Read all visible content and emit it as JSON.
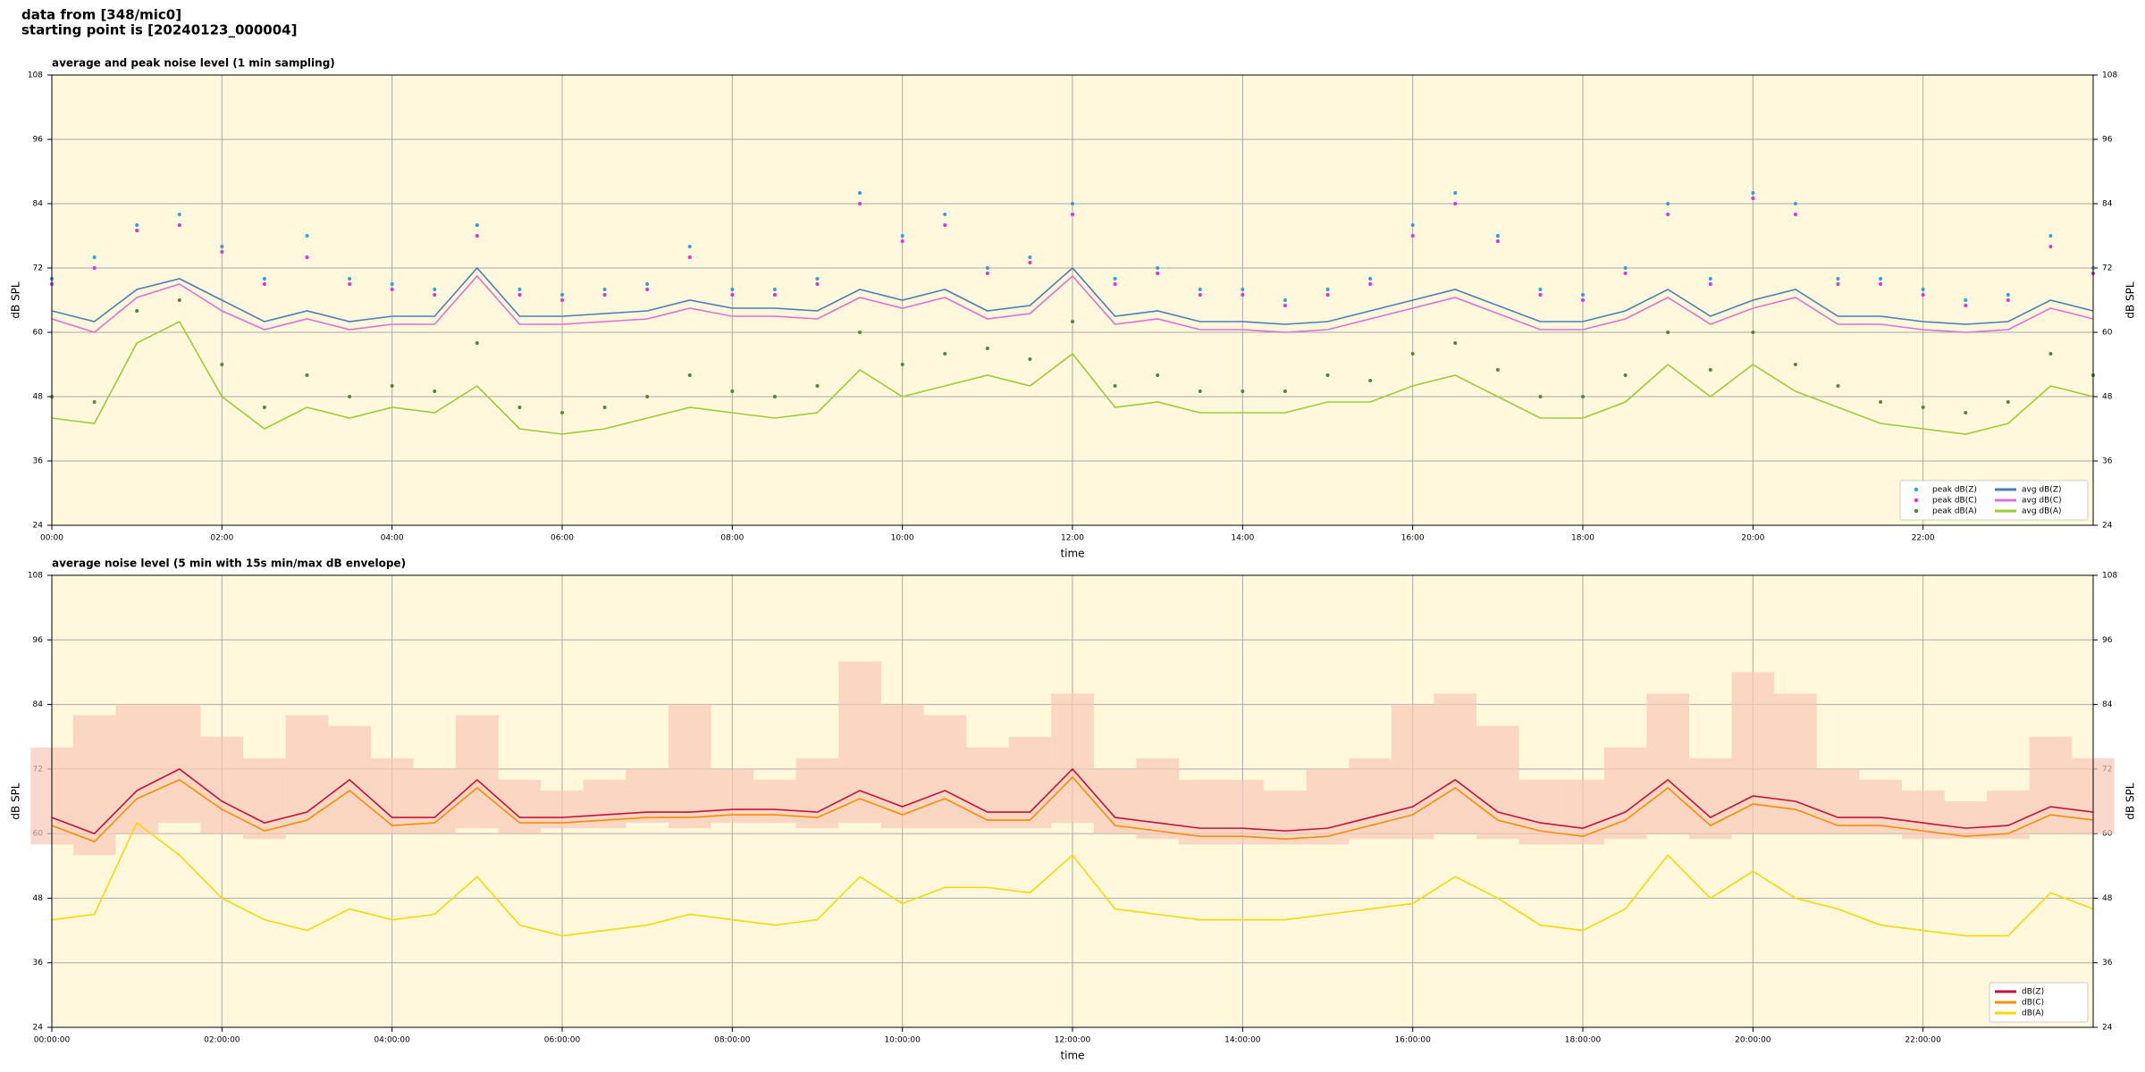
{
  "header": {
    "line1": "data from [348/mic0]",
    "line2": "starting point is [20240123_000004]"
  },
  "chart_data": [
    {
      "type": "line",
      "title": "average and peak noise level (1 min sampling)",
      "xlabel": "time",
      "ylabel": "dB SPL",
      "x": [
        0,
        0.5,
        1,
        1.5,
        2,
        2.5,
        3,
        3.5,
        4,
        4.5,
        5,
        5.5,
        6,
        6.5,
        7,
        7.5,
        8,
        8.5,
        9,
        9.5,
        10,
        10.5,
        11,
        11.5,
        12,
        12.5,
        13,
        13.5,
        14,
        14.5,
        15,
        15.5,
        16,
        16.5,
        17,
        17.5,
        18,
        18.5,
        19,
        19.5,
        20,
        20.5,
        21,
        21.5,
        22,
        22.5,
        23,
        23.5,
        24
      ],
      "xlim": [
        0,
        24
      ],
      "xticks": [
        {
          "value": 0,
          "label": "00:00"
        },
        {
          "value": 2,
          "label": "02:00"
        },
        {
          "value": 4,
          "label": "04:00"
        },
        {
          "value": 6,
          "label": "06:00"
        },
        {
          "value": 8,
          "label": "08:00"
        },
        {
          "value": 10,
          "label": "10:00"
        },
        {
          "value": 12,
          "label": "12:00"
        },
        {
          "value": 14,
          "label": "14:00"
        },
        {
          "value": 16,
          "label": "16:00"
        },
        {
          "value": 18,
          "label": "18:00"
        },
        {
          "value": 20,
          "label": "20:00"
        },
        {
          "value": 22,
          "label": "22:00"
        }
      ],
      "ylim": [
        24,
        108
      ],
      "yticks": [
        24,
        36,
        48,
        60,
        72,
        84,
        96,
        108
      ],
      "grid": true,
      "legend": "lower right",
      "legend_columns": 2,
      "series": [
        {
          "name": "peak dB(Z)",
          "type": "scatter",
          "color": "#2e9fe0",
          "values": [
            70,
            74,
            80,
            82,
            76,
            70,
            78,
            70,
            69,
            68,
            80,
            68,
            67,
            68,
            69,
            76,
            68,
            68,
            70,
            86,
            78,
            82,
            72,
            74,
            84,
            70,
            72,
            68,
            68,
            66,
            68,
            70,
            80,
            86,
            78,
            68,
            67,
            72,
            84,
            70,
            86,
            84,
            70,
            70,
            68,
            66,
            67,
            78,
            72
          ]
        },
        {
          "name": "peak dB(C)",
          "type": "scatter",
          "color": "#e030d8",
          "values": [
            69,
            72,
            79,
            80,
            75,
            69,
            74,
            69,
            68,
            67,
            78,
            67,
            66,
            67,
            68,
            74,
            67,
            67,
            69,
            84,
            77,
            80,
            71,
            73,
            82,
            69,
            71,
            67,
            67,
            65,
            67,
            69,
            78,
            84,
            77,
            67,
            66,
            71,
            82,
            69,
            85,
            82,
            69,
            69,
            67,
            65,
            66,
            76,
            71
          ]
        },
        {
          "name": "peak dB(A)",
          "type": "scatter",
          "color": "#4a8a3a",
          "values": [
            48,
            47,
            64,
            66,
            54,
            46,
            52,
            48,
            50,
            49,
            58,
            46,
            45,
            46,
            48,
            52,
            49,
            48,
            50,
            60,
            54,
            56,
            57,
            55,
            62,
            50,
            52,
            49,
            49,
            49,
            52,
            51,
            56,
            58,
            53,
            48,
            48,
            52,
            60,
            53,
            60,
            54,
            50,
            47,
            46,
            45,
            47,
            56,
            52
          ]
        },
        {
          "name": "avg dB(Z)",
          "type": "line",
          "color": "#4a7fb5",
          "values": [
            64,
            62,
            68,
            70,
            66,
            62,
            64,
            62,
            63,
            63,
            72,
            63,
            63,
            63.5,
            64,
            66,
            64.5,
            64.5,
            64,
            68,
            66,
            68,
            64,
            65,
            72,
            63,
            64,
            62,
            62,
            61.5,
            62,
            64,
            66,
            68,
            65,
            62,
            62,
            64,
            68,
            63,
            66,
            68,
            63,
            63,
            62,
            61.5,
            62,
            66,
            64
          ]
        },
        {
          "name": "avg dB(C)",
          "type": "line",
          "color": "#e070d0",
          "values": [
            62.5,
            60,
            66.5,
            69,
            64,
            60.5,
            62.5,
            60.5,
            61.5,
            61.5,
            70.5,
            61.5,
            61.5,
            62,
            62.5,
            64.5,
            63,
            63,
            62.5,
            66.5,
            64.5,
            66.5,
            62.5,
            63.5,
            70.5,
            61.5,
            62.5,
            60.5,
            60.5,
            60,
            60.5,
            62.5,
            64.5,
            66.5,
            63.5,
            60.5,
            60.5,
            62.5,
            66.5,
            61.5,
            64.5,
            66.5,
            61.5,
            61.5,
            60.5,
            60,
            60.5,
            64.5,
            62.5
          ]
        },
        {
          "name": "avg dB(A)",
          "type": "line",
          "color": "#9acd32",
          "values": [
            44,
            43,
            58,
            62,
            48,
            42,
            46,
            44,
            46,
            45,
            50,
            42,
            41,
            42,
            44,
            46,
            45,
            44,
            45,
            53,
            48,
            50,
            52,
            50,
            56,
            46,
            47,
            45,
            45,
            45,
            47,
            47,
            50,
            52,
            48,
            44,
            44,
            47,
            54,
            48,
            54,
            49,
            46,
            43,
            42,
            41,
            43,
            50,
            48
          ]
        }
      ]
    },
    {
      "type": "line",
      "title": "average noise level (5 min with 15s min/max dB envelope)",
      "xlabel": "time",
      "ylabel": "dB SPL",
      "x": [
        0,
        0.5,
        1,
        1.5,
        2,
        2.5,
        3,
        3.5,
        4,
        4.5,
        5,
        5.5,
        6,
        6.5,
        7,
        7.5,
        8,
        8.5,
        9,
        9.5,
        10,
        10.5,
        11,
        11.5,
        12,
        12.5,
        13,
        13.5,
        14,
        14.5,
        15,
        15.5,
        16,
        16.5,
        17,
        17.5,
        18,
        18.5,
        19,
        19.5,
        20,
        20.5,
        21,
        21.5,
        22,
        22.5,
        23,
        23.5,
        24
      ],
      "xlim": [
        0,
        24
      ],
      "xticks": [
        {
          "value": 0,
          "label": "00:00:00"
        },
        {
          "value": 2,
          "label": "02:00:00"
        },
        {
          "value": 4,
          "label": "04:00:00"
        },
        {
          "value": 6,
          "label": "06:00:00"
        },
        {
          "value": 8,
          "label": "08:00:00"
        },
        {
          "value": 10,
          "label": "10:00:00"
        },
        {
          "value": 12,
          "label": "12:00:00"
        },
        {
          "value": 14,
          "label": "14:00:00"
        },
        {
          "value": 16,
          "label": "16:00:00"
        },
        {
          "value": 18,
          "label": "18:00:00"
        },
        {
          "value": 20,
          "label": "20:00:00"
        },
        {
          "value": 22,
          "label": "22:00:00"
        }
      ],
      "ylim": [
        24,
        108
      ],
      "yticks": [
        24,
        36,
        48,
        60,
        72,
        84,
        96,
        108
      ],
      "grid": true,
      "legend": "lower right",
      "legend_columns": 1,
      "envelope": {
        "color": "#f8c8b8",
        "low": [
          58,
          56,
          60,
          62,
          60,
          59,
          60,
          60,
          60,
          60,
          61,
          60,
          61,
          61,
          62,
          61,
          62,
          62,
          61,
          62,
          61,
          61,
          61,
          61,
          62,
          60,
          59,
          58,
          58,
          58,
          58,
          59,
          59,
          60,
          59,
          58,
          58,
          59,
          60,
          59,
          60,
          60,
          60,
          60,
          59,
          59,
          59,
          60,
          60
        ],
        "high": [
          76,
          82,
          84,
          84,
          78,
          74,
          82,
          80,
          74,
          72,
          82,
          70,
          68,
          70,
          72,
          84,
          72,
          70,
          74,
          92,
          84,
          82,
          76,
          78,
          86,
          72,
          74,
          70,
          70,
          68,
          72,
          74,
          84,
          86,
          80,
          70,
          70,
          76,
          86,
          74,
          90,
          86,
          72,
          70,
          68,
          66,
          68,
          78,
          74
        ]
      },
      "series": [
        {
          "name": "dB(Z)",
          "type": "line",
          "color": "#c8103c",
          "values": [
            63,
            60,
            68,
            72,
            66,
            62,
            64,
            70,
            63,
            63,
            70,
            63,
            63,
            63.5,
            64,
            64,
            64.5,
            64.5,
            64,
            68,
            65,
            68,
            64,
            64,
            72,
            63,
            62,
            61,
            61,
            60.5,
            61,
            63,
            65,
            70,
            64,
            62,
            61,
            64,
            70,
            63,
            67,
            66,
            63,
            63,
            62,
            61,
            61.5,
            65,
            64
          ]
        },
        {
          "name": "dB(C)",
          "type": "line",
          "color": "#ff8c00",
          "values": [
            61.5,
            58.5,
            66.5,
            70,
            64.5,
            60.5,
            62.5,
            68,
            61.5,
            62,
            68.5,
            62,
            62,
            62.5,
            63,
            63,
            63.5,
            63.5,
            63,
            66.5,
            63.5,
            66.5,
            62.5,
            62.5,
            70.5,
            61.5,
            60.5,
            59.5,
            59.5,
            59,
            59.5,
            61.5,
            63.5,
            68.5,
            62.5,
            60.5,
            59.5,
            62.5,
            68.5,
            61.5,
            65.5,
            64.5,
            61.5,
            61.5,
            60.5,
            59.5,
            60,
            63.5,
            62.5
          ]
        },
        {
          "name": "dB(A)",
          "type": "line",
          "color": "#ffd700",
          "values": [
            44,
            45,
            62,
            56,
            48,
            44,
            42,
            46,
            44,
            45,
            52,
            43,
            41,
            42,
            43,
            45,
            44,
            43,
            44,
            52,
            47,
            50,
            50,
            49,
            56,
            46,
            45,
            44,
            44,
            44,
            45,
            46,
            47,
            52,
            48,
            43,
            42,
            46,
            56,
            48,
            53,
            48,
            46,
            43,
            42,
            41,
            41,
            49,
            46
          ]
        }
      ]
    }
  ]
}
